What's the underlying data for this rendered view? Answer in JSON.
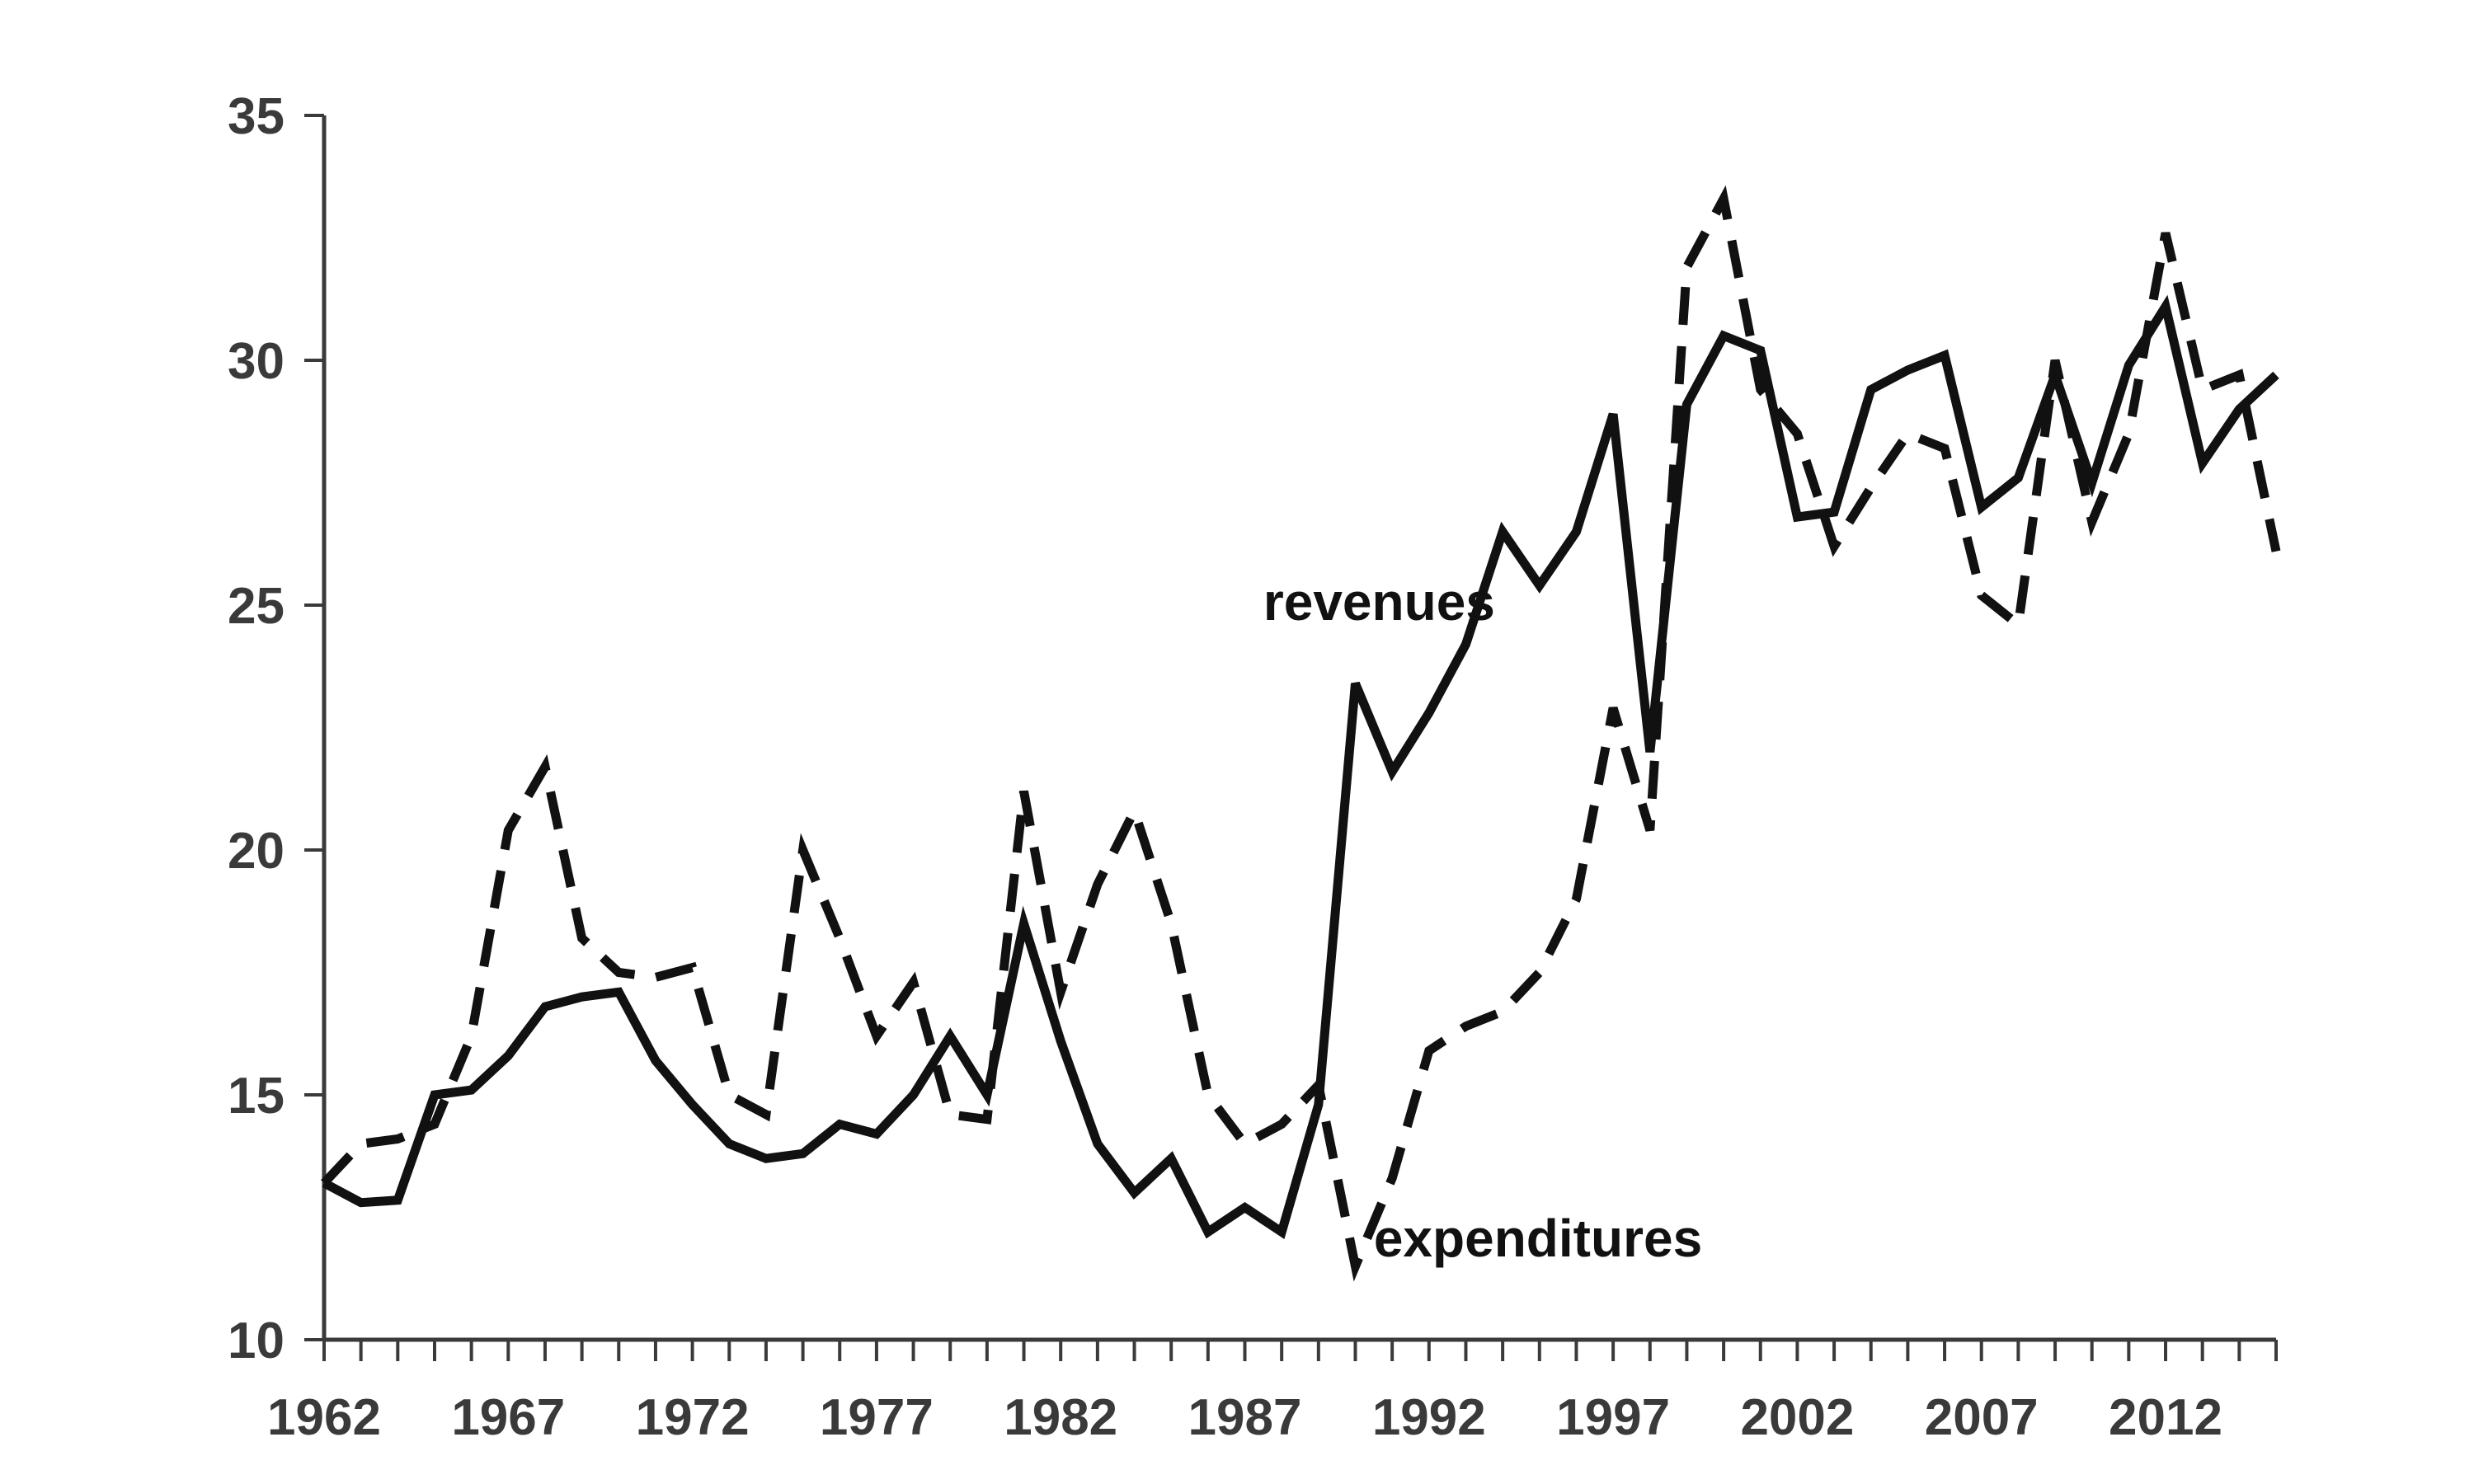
{
  "chart_data": {
    "type": "line",
    "title": "",
    "xlabel": "",
    "ylabel": "",
    "xlim": [
      1962,
      2015
    ],
    "ylim": [
      10,
      35
    ],
    "grid": false,
    "legend": "none",
    "y_ticks": [
      "10",
      "15",
      "20",
      "25",
      "30",
      "35"
    ],
    "x_tick_labels": [
      "1962",
      "1967",
      "1972",
      "1977",
      "1982",
      "1987",
      "1992",
      "1997",
      "2002",
      "2007",
      "2012"
    ],
    "x": [
      1962,
      1963,
      1964,
      1965,
      1966,
      1967,
      1968,
      1969,
      1970,
      1971,
      1972,
      1973,
      1974,
      1975,
      1976,
      1977,
      1978,
      1979,
      1980,
      1981,
      1982,
      1983,
      1984,
      1985,
      1986,
      1987,
      1988,
      1989,
      1990,
      1991,
      1992,
      1993,
      1994,
      1995,
      1996,
      1997,
      1998,
      1999,
      2000,
      2001,
      2002,
      2003,
      2004,
      2005,
      2006,
      2007,
      2008,
      2009,
      2010,
      2011,
      2012,
      2013,
      2014,
      2015
    ],
    "series": [
      {
        "name": "revenues",
        "style": "solid",
        "color": "#111111",
        "values": [
          13.2,
          12.8,
          12.85,
          15.0,
          15.1,
          15.8,
          16.8,
          17.0,
          17.1,
          15.7,
          14.8,
          14.0,
          13.7,
          13.8,
          14.4,
          14.2,
          15.0,
          16.2,
          15.0,
          18.5,
          16.1,
          14.0,
          13.0,
          13.7,
          12.2,
          12.7,
          12.2,
          14.8,
          23.4,
          21.6,
          22.8,
          24.2,
          26.5,
          25.4,
          26.5,
          28.9,
          22.0,
          29.1,
          30.5,
          30.2,
          26.8,
          26.9,
          29.4,
          29.8,
          30.1,
          27.0,
          27.6,
          29.7,
          27.5,
          29.9,
          31.1,
          27.9,
          29.0,
          29.7
        ]
      },
      {
        "name": "expenditures",
        "style": "dashed",
        "color": "#111111",
        "values": [
          13.2,
          14.0,
          14.1,
          14.4,
          16.2,
          20.4,
          21.7,
          18.2,
          17.5,
          17.4,
          17.6,
          15.0,
          14.6,
          20.0,
          18.2,
          16.2,
          17.3,
          14.6,
          14.5,
          21.2,
          17.1,
          19.3,
          20.8,
          18.5,
          15.0,
          14.0,
          14.4,
          15.2,
          11.5,
          13.3,
          15.9,
          16.4,
          16.7,
          17.5,
          19.0,
          22.9,
          20.4,
          31.9,
          33.3,
          29.4,
          28.5,
          26.2,
          27.4,
          28.5,
          28.2,
          25.2,
          24.6,
          30.0,
          26.7,
          28.5,
          32.6,
          29.4,
          29.7,
          26.1
        ]
      }
    ],
    "annotations": [
      {
        "text": "revenues",
        "series": "revenues",
        "x": 1987.5,
        "y": 24.7
      },
      {
        "text": "expenditures",
        "series": "expenditures",
        "x": 1990.5,
        "y": 11.7
      }
    ]
  }
}
